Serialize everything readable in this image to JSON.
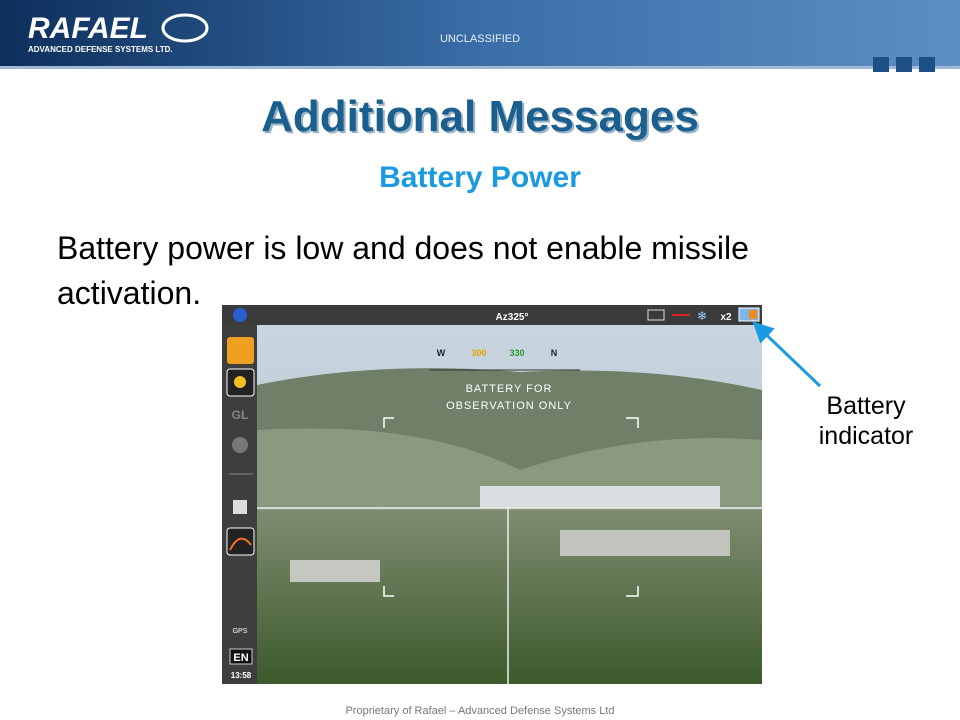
{
  "header": {
    "logo": "RAFAEL",
    "logo_sub": "ADVANCED DEFENSE SYSTEMS LTD.",
    "classification": "UNCLASSIFIED"
  },
  "title": "Additional Messages",
  "subtitle": "Battery Power",
  "body": [
    "Battery power is low and does not enable missile",
    "activation."
  ],
  "screenshot": {
    "azimuth": "Az325°",
    "zoom": "x2",
    "compass": [
      "W",
      "300",
      "330",
      "N"
    ],
    "message": [
      "BATTERY FOR",
      "OBSERVATION ONLY"
    ],
    "sidebar": {
      "gl": "GL",
      "gps": "GPS",
      "language": "EN",
      "time": "13:58"
    }
  },
  "callout": [
    "Battery",
    "indicator"
  ],
  "footer": "Proprietary of Rafael – Advanced Defense Systems Ltd"
}
